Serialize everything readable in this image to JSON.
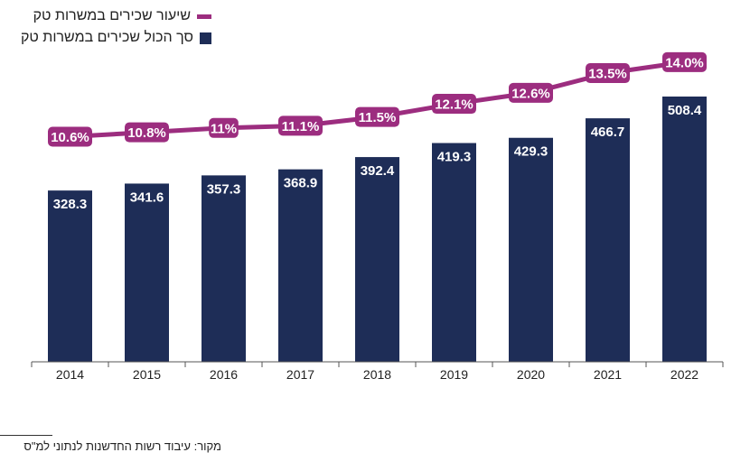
{
  "legend": {
    "rate_label": "שיעור שכירים במשרות טק",
    "total_label": "סך הכול שכירים במשרות טק"
  },
  "source": "מקור: עיבוד רשות החדשנות לנתוני למ\"ס",
  "colors": {
    "bar": "#1e2d57",
    "line": "#9c2d7f",
    "axis": "#555555"
  },
  "chart_data": {
    "type": "bar",
    "categories": [
      "2014",
      "2015",
      "2016",
      "2017",
      "2018",
      "2019",
      "2020",
      "2021",
      "2022"
    ],
    "series": [
      {
        "name": "סך הכול שכירים במשרות טק",
        "type": "bar",
        "values": [
          328.3,
          341.6,
          357.3,
          368.9,
          392.4,
          419.3,
          429.3,
          466.7,
          508.4
        ],
        "labels": [
          "328.3",
          "341.6",
          "357.3",
          "368.9",
          "392.4",
          "419.3",
          "429.3",
          "466.7",
          "508.4"
        ]
      },
      {
        "name": "שיעור שכירים במשרות טק",
        "type": "line",
        "values": [
          10.6,
          10.8,
          11,
          11.1,
          11.5,
          12.1,
          12.6,
          13.5,
          14.0
        ],
        "labels": [
          "10.6%",
          "10.8%",
          "11%",
          "11.1%",
          "11.5%",
          "12.1%",
          "12.6%",
          "13.5%",
          "14.0%"
        ]
      }
    ],
    "grid": false,
    "legend_position": "top-left"
  }
}
